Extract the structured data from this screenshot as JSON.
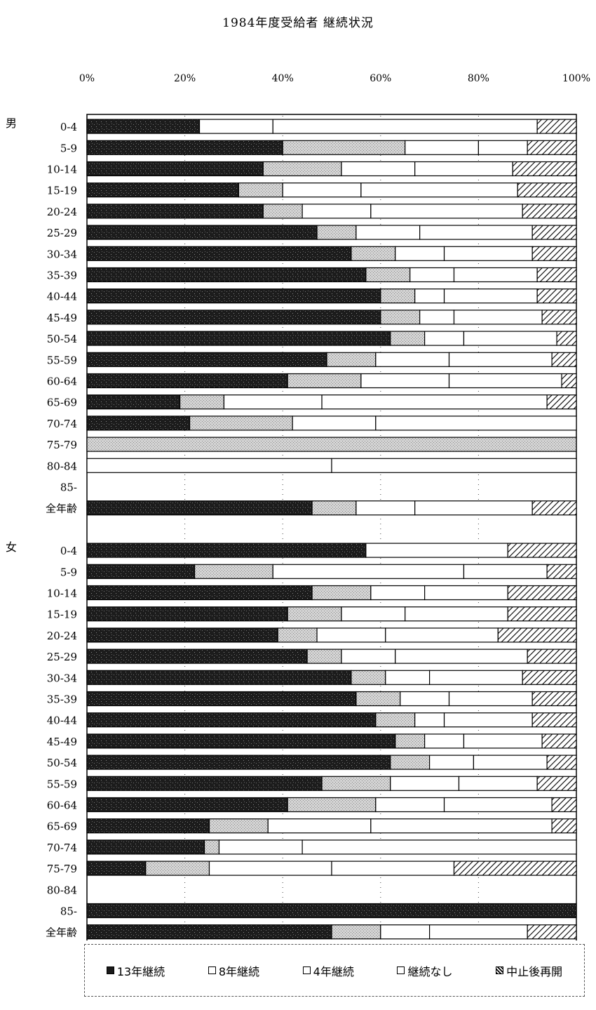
{
  "chart_data": {
    "type": "bar",
    "orientation": "horizontal",
    "stacked": "percent",
    "title": "1984年度受給者 継続状況",
    "x_ticks": [
      "0%",
      "20%",
      "40%",
      "60%",
      "80%",
      "100%"
    ],
    "xlim": [
      0,
      100
    ],
    "legend_position": "bottom",
    "series": [
      {
        "name": "13年継続",
        "color": "#1a1a1a"
      },
      {
        "name": "8年継続",
        "color": "#c8c8c8"
      },
      {
        "name": "4年継続",
        "color": "#ffffff"
      },
      {
        "name": "継続なし",
        "color": "#ffffff"
      },
      {
        "name": "中止後再開",
        "color": "#ffffff",
        "pattern": "hatch"
      }
    ],
    "groups": [
      {
        "label": "男",
        "rows": [
          {
            "category": "0-4",
            "values": [
              23,
              0,
              15,
              54,
              8
            ]
          },
          {
            "category": "5-9",
            "values": [
              40,
              25,
              15,
              10,
              10
            ]
          },
          {
            "category": "10-14",
            "values": [
              36,
              16,
              15,
              20,
              13
            ]
          },
          {
            "category": "15-19",
            "values": [
              31,
              9,
              16,
              32,
              12
            ]
          },
          {
            "category": "20-24",
            "values": [
              36,
              8,
              14,
              31,
              11
            ]
          },
          {
            "category": "25-29",
            "values": [
              47,
              8,
              13,
              23,
              9
            ]
          },
          {
            "category": "30-34",
            "values": [
              54,
              9,
              10,
              18,
              9
            ]
          },
          {
            "category": "35-39",
            "values": [
              57,
              9,
              9,
              17,
              8
            ]
          },
          {
            "category": "40-44",
            "values": [
              60,
              7,
              6,
              19,
              8
            ]
          },
          {
            "category": "45-49",
            "values": [
              60,
              8,
              7,
              18,
              7
            ]
          },
          {
            "category": "50-54",
            "values": [
              62,
              7,
              8,
              19,
              4
            ]
          },
          {
            "category": "55-59",
            "values": [
              49,
              10,
              15,
              21,
              5
            ]
          },
          {
            "category": "60-64",
            "values": [
              41,
              15,
              18,
              23,
              3
            ]
          },
          {
            "category": "65-69",
            "values": [
              19,
              9,
              20,
              46,
              6
            ]
          },
          {
            "category": "70-74",
            "values": [
              21,
              21,
              17,
              41,
              0
            ]
          },
          {
            "category": "75-79",
            "values": [
              0,
              100,
              0,
              0,
              0
            ]
          },
          {
            "category": "80-84",
            "values": [
              0,
              0,
              50,
              50,
              0
            ]
          },
          {
            "category": "85-",
            "values": [
              0,
              0,
              0,
              0,
              0
            ]
          },
          {
            "category": "全年齢",
            "values": [
              46,
              9,
              12,
              24,
              9
            ]
          }
        ]
      },
      {
        "label": "女",
        "rows": [
          {
            "category": "0-4",
            "values": [
              57,
              0,
              0,
              29,
              14
            ]
          },
          {
            "category": "5-9",
            "values": [
              22,
              16,
              39,
              17,
              6
            ]
          },
          {
            "category": "10-14",
            "values": [
              46,
              12,
              11,
              17,
              14
            ]
          },
          {
            "category": "15-19",
            "values": [
              41,
              11,
              13,
              21,
              14
            ]
          },
          {
            "category": "20-24",
            "values": [
              39,
              8,
              14,
              23,
              16
            ]
          },
          {
            "category": "25-29",
            "values": [
              45,
              7,
              11,
              27,
              10
            ]
          },
          {
            "category": "30-34",
            "values": [
              54,
              7,
              9,
              19,
              11
            ]
          },
          {
            "category": "35-39",
            "values": [
              55,
              9,
              10,
              17,
              9
            ]
          },
          {
            "category": "40-44",
            "values": [
              59,
              8,
              6,
              18,
              9
            ]
          },
          {
            "category": "45-49",
            "values": [
              63,
              6,
              8,
              16,
              7
            ]
          },
          {
            "category": "50-54",
            "values": [
              62,
              8,
              9,
              15,
              6
            ]
          },
          {
            "category": "55-59",
            "values": [
              48,
              14,
              14,
              16,
              8
            ]
          },
          {
            "category": "60-64",
            "values": [
              41,
              18,
              14,
              22,
              5
            ]
          },
          {
            "category": "65-69",
            "values": [
              25,
              12,
              21,
              37,
              5
            ]
          },
          {
            "category": "70-74",
            "values": [
              24,
              3,
              17,
              56,
              0
            ]
          },
          {
            "category": "75-79",
            "values": [
              12,
              13,
              25,
              25,
              25
            ]
          },
          {
            "category": "80-84",
            "values": [
              0,
              0,
              0,
              0,
              0
            ]
          },
          {
            "category": "85-",
            "values": [
              100,
              0,
              0,
              0,
              0
            ]
          },
          {
            "category": "全年齢",
            "values": [
              50,
              10,
              10,
              20,
              10
            ]
          }
        ]
      }
    ]
  }
}
